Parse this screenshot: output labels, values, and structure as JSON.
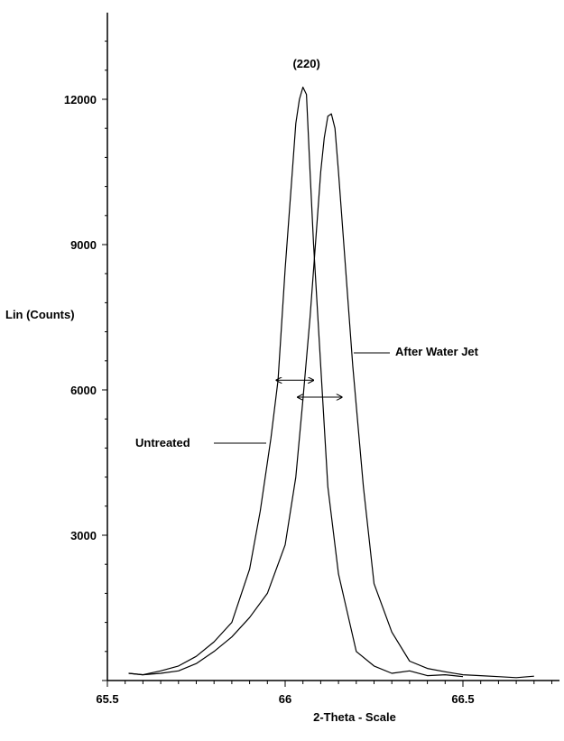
{
  "chart_data": {
    "type": "line",
    "xlabel": "2-Theta - Scale",
    "ylabel": "Lin (Counts)",
    "xlim": [
      65.5,
      66.8
    ],
    "ylim": [
      0,
      13500
    ],
    "x_ticks": [
      {
        "value": 65.5,
        "label": "65.5"
      },
      {
        "value": 66.0,
        "label": "66"
      },
      {
        "value": 66.5,
        "label": "66.5"
      }
    ],
    "y_ticks": [
      {
        "value": 3000,
        "label": "3000"
      },
      {
        "value": 6000,
        "label": "6000"
      },
      {
        "value": 9000,
        "label": "9000"
      },
      {
        "value": 12000,
        "label": "12000"
      }
    ],
    "peak_label": {
      "text": "(220)",
      "x": 66.06,
      "y": 12650
    },
    "series": [
      {
        "name": "Untreated",
        "x": [
          65.56,
          65.6,
          65.65,
          65.7,
          65.75,
          65.8,
          65.85,
          65.9,
          65.93,
          65.96,
          65.98,
          66.0,
          66.02,
          66.03,
          66.04,
          66.05,
          66.06,
          66.07,
          66.08,
          66.1,
          66.12,
          66.15,
          66.2,
          66.25,
          66.3,
          66.35,
          66.4,
          66.45,
          66.5
        ],
        "y": [
          150,
          120,
          200,
          300,
          500,
          800,
          1200,
          2300,
          3500,
          5000,
          6200,
          8500,
          10500,
          11500,
          12000,
          12250,
          12100,
          10500,
          9000,
          6500,
          4000,
          2200,
          600,
          300,
          150,
          200,
          100,
          120,
          80
        ]
      },
      {
        "name": "After Water Jet",
        "x": [
          65.56,
          65.6,
          65.65,
          65.7,
          65.75,
          65.8,
          65.85,
          65.9,
          65.95,
          66.0,
          66.03,
          66.05,
          66.07,
          66.09,
          66.1,
          66.11,
          66.12,
          66.13,
          66.14,
          66.15,
          66.17,
          66.19,
          66.22,
          66.25,
          66.3,
          66.35,
          66.4,
          66.45,
          66.5,
          66.55,
          66.6,
          66.65,
          66.7
        ],
        "y": [
          150,
          120,
          150,
          200,
          350,
          600,
          900,
          1300,
          1800,
          2800,
          4200,
          5800,
          7500,
          9500,
          10500,
          11200,
          11650,
          11700,
          11400,
          10500,
          8500,
          6500,
          4000,
          2000,
          1000,
          400,
          250,
          180,
          120,
          100,
          80,
          60,
          90
        ]
      }
    ],
    "annotations": [
      {
        "text": "Untreated",
        "series": "Untreated"
      },
      {
        "text": "After Water Jet",
        "series": "After Water Jet"
      }
    ],
    "fwhm_markers": [
      {
        "series": "Untreated",
        "x1": 65.975,
        "x2": 66.08,
        "y": 6200
      },
      {
        "series": "After Water Jet",
        "x1": 66.035,
        "x2": 66.16,
        "y": 5850
      }
    ],
    "grid": false,
    "legend": "none"
  }
}
